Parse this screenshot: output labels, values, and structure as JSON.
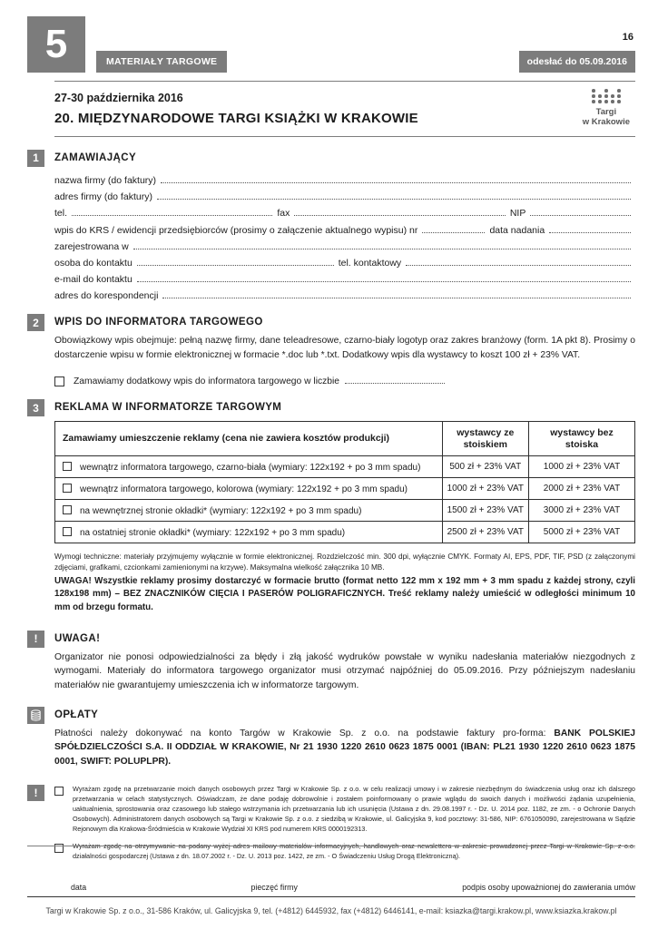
{
  "badges": {
    "form_number": "5",
    "category": "MATERIAŁY TARGOWE",
    "page_number": "16",
    "deadline": "odesłać do 05.09.2016"
  },
  "header": {
    "dates": "27-30 października 2016",
    "title": "20. MIĘDZYNARODOWE TARGI KSIĄŻKI W KRAKOWIE",
    "logo_line1": "Targi",
    "logo_line2": "w Krakowie"
  },
  "colors": {
    "accent_gray": "#7c7c7c",
    "text": "#1c1c1c"
  },
  "section1": {
    "number": "1",
    "title": "ZAMAWIAJĄCY",
    "lines": [
      [
        {
          "t": "nazwa firmy (do faktury)"
        },
        {
          "f": 1
        }
      ],
      [
        {
          "t": "adres firmy (do faktury)"
        },
        {
          "f": 1
        }
      ],
      [
        {
          "t": "tel."
        },
        {
          "f": 2
        },
        {
          "t": "fax"
        },
        {
          "f": 2.1
        },
        {
          "t": "NIP"
        },
        {
          "f": 1
        }
      ],
      [
        {
          "t": "wpis do KRS / ewidencji przedsiębiorców (prosimy o załączenie aktualnego wypisu) nr"
        },
        {
          "f": 1
        },
        {
          "t": "data nadania"
        },
        {
          "f": 1.3
        }
      ],
      [
        {
          "t": "zarejestrowana w"
        },
        {
          "f": 1
        }
      ],
      [
        {
          "t": "osoba do kontaktu"
        },
        {
          "f": 1.4
        },
        {
          "t": "tel. kontaktowy"
        },
        {
          "f": 1.6
        }
      ],
      [
        {
          "t": "e-mail do kontaktu"
        },
        {
          "f": 1
        }
      ],
      [
        {
          "t": "adres do korespondencji"
        },
        {
          "f": 1
        }
      ]
    ]
  },
  "section2": {
    "number": "2",
    "title": "WPIS DO INFORMATORA TARGOWEGO",
    "para": "Obowiązkowy wpis obejmuje: pełną nazwę firmy, dane teleadresowe, czarno-biały logotyp oraz zakres branżowy (form. 1A pkt 8). Prosimy o dostarczenie wpisu w formie elektronicznej w formacie *.doc lub *.txt. Dodatkowy wpis dla wystawcy to koszt 100 zł + 23% VAT.",
    "checkbox_label": "Zamawiamy dodatkowy wpis do informatora targowego w liczbie"
  },
  "section3": {
    "number": "3",
    "title": "REKLAMA W INFORMATORZE TARGOWYM",
    "table": {
      "header": [
        "Zamawiamy umieszczenie reklamy (cena nie zawiera kosztów produkcji)",
        "wystawcy ze stoiskiem",
        "wystawcy bez stoiska"
      ],
      "rows": [
        {
          "label": "wewnątrz informatora targowego, czarno-biała (wymiary: 122x192 + po 3 mm spadu)",
          "with_stand": "500 zł + 23% VAT",
          "without_stand": "1000 zł + 23% VAT"
        },
        {
          "label": "wewnątrz informatora targowego, kolorowa (wymiary: 122x192 + po 3 mm spadu)",
          "with_stand": "1000 zł + 23% VAT",
          "without_stand": "2000 zł + 23% VAT"
        },
        {
          "label": "na wewnętrznej stronie okładki* (wymiary: 122x192 + po 3 mm spadu)",
          "with_stand": "1500 zł + 23% VAT",
          "without_stand": "3000 zł + 23% VAT"
        },
        {
          "label": "na ostatniej stronie okładki* (wymiary: 122x192 + po 3 mm spadu)",
          "with_stand": "2500 zł + 23% VAT",
          "without_stand": "5000 zł + 23% VAT"
        }
      ]
    },
    "tech_note": "Wymogi techniczne: materiały przyjmujemy wyłącznie w formie elektronicznej. Rozdzielczość min. 300 dpi, wyłącznie CMYK. Formaty AI, EPS, PDF, TIF, PSD (z załączonymi zdjęciami, grafikami, czcionkami zamienionymi na krzywe). Maksymalna wielkość załącznika 10 MB.",
    "tech_warning": "UWAGA! Wszystkie reklamy prosimy dostarczyć w formacie brutto (format netto 122 mm x 192 mm + 3 mm spadu z każdej strony, czyli 128x198 mm) – BEZ ZNACZNIKÓW CIĘCIA I PASERÓW POLIGRAFICZNYCH. Treść reklamy należy umieścić w odległości minimum 10 mm od brzegu formatu."
  },
  "uwaga": {
    "icon_glyph": "!",
    "title": "UWAGA!",
    "body": "Organizator nie ponosi odpowiedzialności za błędy i złą jakość wydruków powstałe w wyniku nadesłania materiałów niezgodnych z wymogami. Materiały do informatora targowego organizator musi otrzymać najpóźniej do 05.09.2016. Przy późniejszym nadesłaniu materiałów nie gwarantujemy umieszczenia ich w informatorze targowym."
  },
  "oplaty": {
    "title": "OPŁATY",
    "text_normal": "Płatności należy dokonywać na konto Targów w Krakowie Sp. z o.o. na podstawie faktury pro-forma: ",
    "text_bold": "BANK POLSKIEJ SPÓŁDZIELCZOŚCI S.A. II ODDZIAŁ W KRAKOWIE, Nr 21 1930 1220 2610 0623 1875 0001 (IBAN: PL21 1930 1220 2610 0623 1875 0001, SWIFT: POLUPLPR)."
  },
  "consents": {
    "icon_glyph": "!",
    "items": [
      {
        "text": "Wyrażam zgodę na przetwarzanie moich danych osobowych przez Targi w Krakowie Sp. z o.o. w celu realizacji umowy i w zakresie niezbędnym do świadczenia usług oraz ich dalszego przetwarzania w celach statystycznych. Oświadczam, że dane podaję dobrowolnie i zostałem poinformowany o prawie wglądu do swoich danych i możliwości żądania uzupełnienia, uaktualnienia, sprostowania oraz czasowego lub stałego wstrzymania ich przetwarzania lub ich usunięcia (Ustawa z dn. 29.08.1997 r. - Dz. U. 2014 poz. 1182, ze zm. - o Ochronie Danych Osobowych). Administratorem danych osobowych są Targi w Krakowie Sp. z o.o. z siedzibą w Krakowie, ul. Galicyjska 9, kod pocztowy: 31-586, NIP: 6761050090, zarejestrowana w Sądzie Rejonowym dla Krakowa-Śródmieścia w Krakowie Wydział XI KRS pod numerem KRS 0000192313."
      },
      {
        "text": "Wyrażam zgodę na otrzymywanie na podany wyżej adres mailowy materiałów informacyjnych, handlowych oraz newslettera w zakresie prowadzonej przez Targi w Krakowie Sp. z o.o. działalności gospodarczej (Ustawa z dn. 18.07.2002 r. - Dz. U. 2013 poz. 1422, ze zm. - O Świadczeniu Usług Drogą Elektroniczną)."
      }
    ]
  },
  "signature": {
    "labels": [
      "data",
      "pieczęć firmy",
      "podpis osoby upoważnionej do zawierania umów"
    ]
  },
  "footer": {
    "text": "Targi w Krakowie Sp. z o.o., 31-586 Kraków, ul. Galicyjska 9, tel. (+4812) 6445932, fax (+4812) 6446141, e-mail: ksiazka@targi.krakow.pl, www.ksiazka.krakow.pl"
  }
}
